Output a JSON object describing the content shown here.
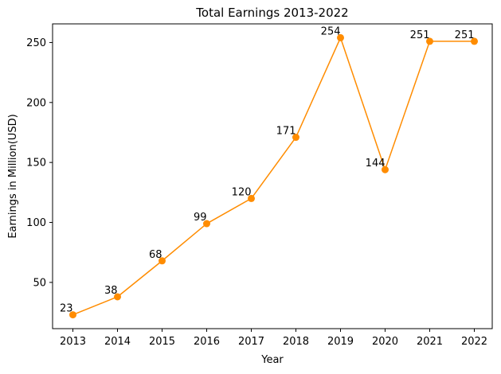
{
  "chart_data": {
    "type": "line",
    "title": "Total Earnings 2013-2022",
    "xlabel": "Year",
    "ylabel": "Earnings in Million(USD)",
    "categories": [
      "2013",
      "2014",
      "2015",
      "2016",
      "2017",
      "2018",
      "2019",
      "2020",
      "2021",
      "2022"
    ],
    "series": [
      {
        "values": [
          23,
          38,
          68,
          99,
          120,
          171,
          254,
          144,
          251,
          251
        ],
        "color": "#ff8c00"
      }
    ],
    "data_labels": [
      "23",
      "38",
      "68",
      "99",
      "120",
      "171",
      "254",
      "144",
      "251",
      "251"
    ],
    "yticks": [
      50,
      100,
      150,
      200,
      250
    ],
    "ytick_labels": [
      "50",
      "100",
      "150",
      "200",
      "250"
    ],
    "ylim": [
      11.45,
      265.55
    ],
    "grid": false,
    "legend": "none"
  }
}
